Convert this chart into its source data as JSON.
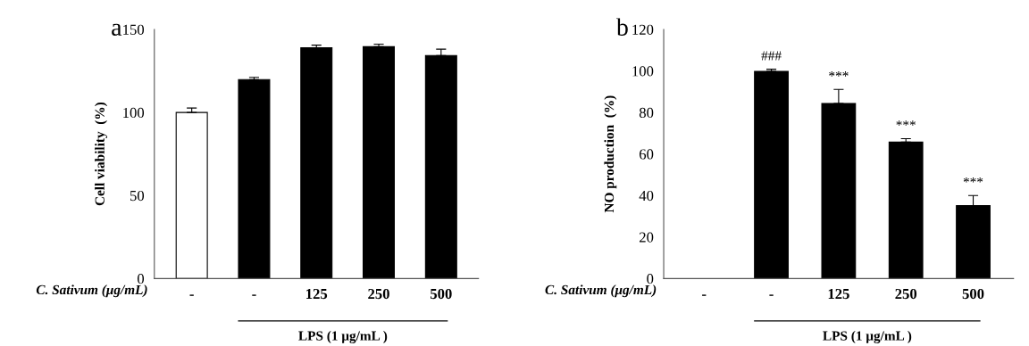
{
  "chart_data": [
    {
      "type": "bar",
      "title": "a",
      "ylabel": "Cell viability  (%)",
      "xlabel": "C. Sativum (μg/mL)",
      "categories": [
        "-",
        "-",
        "125",
        "250",
        "500"
      ],
      "values": [
        100,
        119.8,
        139,
        139.6,
        134.3
      ],
      "colors": [
        "#ffffff",
        "#000000",
        "#000000",
        "#000000",
        "#000000"
      ],
      "errors": [
        2.7,
        1.3,
        1.5,
        1.5,
        3.8
      ],
      "ylim": [
        0,
        150
      ],
      "yticks": [
        0,
        50,
        100,
        150
      ],
      "grid": false,
      "legend": false,
      "annotations": [
        "LPS (1 μg/mL )"
      ]
    },
    {
      "type": "bar",
      "title": "b",
      "ylabel": "NO production  (%)",
      "xlabel": "C. Sativum (μg/mL)",
      "categories": [
        "-",
        "-",
        "125",
        "250",
        "500"
      ],
      "values": [
        null,
        99.8,
        84.3,
        65.7,
        35.1
      ],
      "colors": [
        "#000000",
        "#000000",
        "#000000",
        "#000000",
        "#000000"
      ],
      "errors": [
        null,
        1.0,
        6.8,
        1.7,
        4.9
      ],
      "value_labels": [
        null,
        "###",
        "***",
        "***",
        "***"
      ],
      "ylim": [
        0,
        120
      ],
      "yticks": [
        0,
        20,
        40,
        60,
        80,
        100,
        120
      ],
      "grid": false,
      "legend": false,
      "annotations": [
        "LPS (1 μg/mL )"
      ]
    }
  ]
}
